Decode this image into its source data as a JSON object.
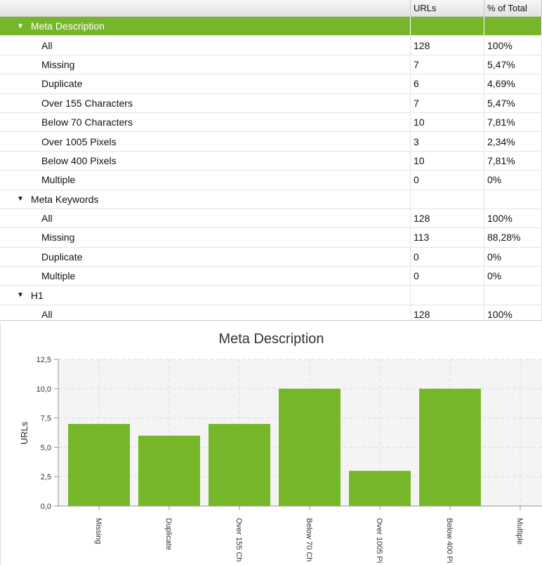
{
  "table": {
    "columns": [
      "",
      "URLs",
      "% of Total"
    ],
    "rows": [
      {
        "type": "group",
        "label": "Meta Description",
        "selected": true
      },
      {
        "type": "item",
        "label": "All",
        "urls": "128",
        "pct": "100%"
      },
      {
        "type": "item",
        "label": "Missing",
        "urls": "7",
        "pct": "5,47%"
      },
      {
        "type": "item",
        "label": "Duplicate",
        "urls": "6",
        "pct": "4,69%"
      },
      {
        "type": "item",
        "label": "Over 155 Characters",
        "urls": "7",
        "pct": "5,47%"
      },
      {
        "type": "item",
        "label": "Below 70 Characters",
        "urls": "10",
        "pct": "7,81%"
      },
      {
        "type": "item",
        "label": "Over 1005 Pixels",
        "urls": "3",
        "pct": "2,34%"
      },
      {
        "type": "item",
        "label": "Below 400 Pixels",
        "urls": "10",
        "pct": "7,81%"
      },
      {
        "type": "item",
        "label": "Multiple",
        "urls": "0",
        "pct": "0%"
      },
      {
        "type": "group",
        "label": "Meta Keywords"
      },
      {
        "type": "item",
        "label": "All",
        "urls": "128",
        "pct": "100%"
      },
      {
        "type": "item",
        "label": "Missing",
        "urls": "113",
        "pct": "88,28%"
      },
      {
        "type": "item",
        "label": "Duplicate",
        "urls": "0",
        "pct": "0%"
      },
      {
        "type": "item",
        "label": "Multiple",
        "urls": "0",
        "pct": "0%"
      },
      {
        "type": "group",
        "label": "H1"
      },
      {
        "type": "item",
        "label": "All",
        "urls": "128",
        "pct": "100%"
      }
    ]
  },
  "colors": {
    "accent": "#76b72a"
  },
  "chart_data": {
    "type": "bar",
    "title": "Meta Description",
    "ylabel": "URLs",
    "xlabel": "",
    "categories": [
      "Missing",
      "Duplicate",
      "Over 155 Ch",
      "Below 70 Ch",
      "Over 1005 Pi",
      "Below 400 Pi",
      "Multiple"
    ],
    "values": [
      7,
      6,
      7,
      10,
      3,
      10,
      0
    ],
    "ylim": [
      0,
      12.5
    ],
    "yticks": [
      "0,0",
      "2,5",
      "5,0",
      "7,5",
      "10,0",
      "12,5"
    ],
    "grid": true
  }
}
